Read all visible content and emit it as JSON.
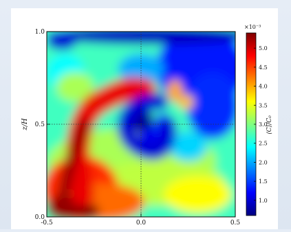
{
  "chart_data": {
    "type": "heatmap",
    "xlabel": "",
    "ylabel": "z/H",
    "xlim": [
      -0.5,
      0.5
    ],
    "ylim": [
      0.0,
      1.0
    ],
    "x_ticks": [
      "-0.5",
      "0.0",
      "0.5"
    ],
    "y_ticks": [
      "0.0",
      "0.5",
      "1.0"
    ],
    "crosshair": {
      "x": 0.0,
      "z": 0.5
    },
    "colorbar": {
      "label": "⟨C⟩/C₀",
      "multiplier": "×10⁻³",
      "min": 0.6,
      "max": 5.4,
      "ticks": [
        "1.0",
        "1.5",
        "2.0",
        "2.5",
        "3.0",
        "3.5",
        "4.0",
        "4.5",
        "5.0"
      ],
      "tick_values": [
        1.0,
        1.5,
        2.0,
        2.5,
        3.0,
        3.5,
        4.0,
        4.5,
        5.0
      ],
      "colormap": [
        "#00007f",
        "#0000ff",
        "#0080ff",
        "#00ffff",
        "#80ff80",
        "#ffff00",
        "#ff8000",
        "#ff0000",
        "#7f0000"
      ]
    },
    "features": [
      {
        "name": "Low-concentration vortex core (center)",
        "x": 0.0,
        "z": 0.5,
        "value": 0.8
      },
      {
        "name": "High-concentration spiral arm (left)",
        "x": -0.35,
        "z": 0.45,
        "value": 4.8
      },
      {
        "name": "Low-concentration region (upper right)",
        "x": 0.35,
        "z": 0.8,
        "value": 1.2
      },
      {
        "name": "Low-concentration band (top)",
        "x": 0.0,
        "z": 0.98,
        "value": 1.0
      },
      {
        "name": "High-concentration plume (bottom left)",
        "x": -0.4,
        "z": 0.05,
        "value": 5.3
      }
    ]
  }
}
